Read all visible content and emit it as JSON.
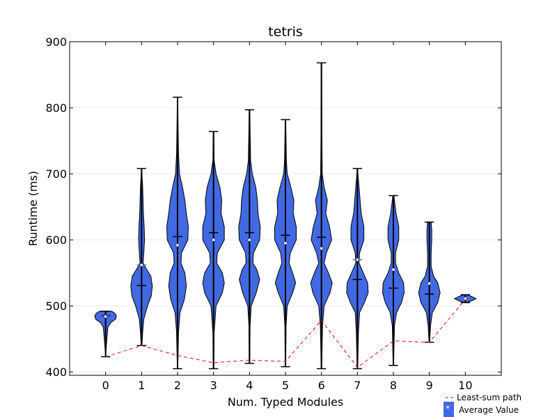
{
  "chart_data": {
    "type": "violin",
    "title": "tetris",
    "xlabel": "Num. Typed Modules",
    "ylabel": "Runtime (ms)",
    "xlim": [
      -1,
      11
    ],
    "ylim": [
      395,
      900
    ],
    "x_ticks": [
      0,
      1,
      2,
      3,
      4,
      5,
      6,
      7,
      8,
      9,
      10
    ],
    "y_ticks": [
      400,
      500,
      600,
      700,
      800,
      900
    ],
    "grid": "horizontal",
    "legend_position": "bottom-right",
    "colors": {
      "violin_fill": "#4169e1",
      "least_sum_path": "#ff0000",
      "grid": "#e8e8e8"
    },
    "legend": [
      {
        "label": "Least-sum path",
        "style": "red-dashed-line"
      },
      {
        "label": "Average Value",
        "style": "blue-box-with-star",
        "marker_text": "*"
      }
    ],
    "violins": [
      {
        "x": 0,
        "min": 423,
        "max": 492,
        "median": 485,
        "mean": 484,
        "shape": [
          [
            423,
            0
          ],
          [
            440,
            0.02
          ],
          [
            455,
            0.04
          ],
          [
            468,
            0.06
          ],
          [
            475,
            0.14
          ],
          [
            480,
            0.26
          ],
          [
            485,
            0.28
          ],
          [
            489,
            0.24
          ],
          [
            492,
            0.16
          ]
        ]
      },
      {
        "x": 1,
        "min": 440,
        "max": 708,
        "median": 531,
        "mean": 562,
        "shape": [
          [
            440,
            0.01
          ],
          [
            460,
            0.03
          ],
          [
            480,
            0.06
          ],
          [
            500,
            0.16
          ],
          [
            515,
            0.26
          ],
          [
            530,
            0.29
          ],
          [
            545,
            0.25
          ],
          [
            555,
            0.14
          ],
          [
            565,
            0.04
          ],
          [
            580,
            0.06
          ],
          [
            600,
            0.08
          ],
          [
            620,
            0.07
          ],
          [
            640,
            0.05
          ],
          [
            660,
            0.04
          ],
          [
            680,
            0.03
          ],
          [
            700,
            0.01
          ],
          [
            708,
            0.005
          ]
        ]
      },
      {
        "x": 2,
        "min": 405,
        "max": 816,
        "median": 605,
        "mean": 592,
        "shape": [
          [
            405,
            0.005
          ],
          [
            460,
            0.02
          ],
          [
            490,
            0.05
          ],
          [
            510,
            0.14
          ],
          [
            530,
            0.18
          ],
          [
            550,
            0.15
          ],
          [
            565,
            0.07
          ],
          [
            580,
            0.08
          ],
          [
            600,
            0.21
          ],
          [
            620,
            0.22
          ],
          [
            640,
            0.18
          ],
          [
            660,
            0.15
          ],
          [
            680,
            0.1
          ],
          [
            700,
            0.04
          ],
          [
            730,
            0.02
          ],
          [
            780,
            0.01
          ],
          [
            816,
            0.005
          ]
        ]
      },
      {
        "x": 3,
        "min": 405,
        "max": 764,
        "median": 611,
        "mean": 600,
        "shape": [
          [
            405,
            0.005
          ],
          [
            460,
            0.01
          ],
          [
            500,
            0.04
          ],
          [
            520,
            0.14
          ],
          [
            535,
            0.17
          ],
          [
            550,
            0.14
          ],
          [
            565,
            0.05
          ],
          [
            580,
            0.06
          ],
          [
            600,
            0.17
          ],
          [
            620,
            0.17
          ],
          [
            640,
            0.12
          ],
          [
            660,
            0.13
          ],
          [
            680,
            0.1
          ],
          [
            700,
            0.04
          ],
          [
            720,
            0.01
          ],
          [
            764,
            0.005
          ]
        ]
      },
      {
        "x": 4,
        "min": 413,
        "max": 797,
        "median": 611,
        "mean": 600,
        "shape": [
          [
            413,
            0.005
          ],
          [
            470,
            0.01
          ],
          [
            500,
            0.03
          ],
          [
            520,
            0.12
          ],
          [
            540,
            0.18
          ],
          [
            555,
            0.13
          ],
          [
            565,
            0.06
          ],
          [
            580,
            0.07
          ],
          [
            600,
            0.18
          ],
          [
            620,
            0.19
          ],
          [
            640,
            0.15
          ],
          [
            660,
            0.14
          ],
          [
            680,
            0.11
          ],
          [
            700,
            0.05
          ],
          [
            720,
            0.02
          ],
          [
            797,
            0.005
          ]
        ]
      },
      {
        "x": 5,
        "min": 408,
        "max": 782,
        "median": 607,
        "mean": 595,
        "shape": [
          [
            408,
            0.005
          ],
          [
            470,
            0.01
          ],
          [
            500,
            0.03
          ],
          [
            520,
            0.12
          ],
          [
            535,
            0.17
          ],
          [
            550,
            0.12
          ],
          [
            565,
            0.06
          ],
          [
            580,
            0.08
          ],
          [
            600,
            0.18
          ],
          [
            620,
            0.18
          ],
          [
            640,
            0.13
          ],
          [
            660,
            0.14
          ],
          [
            680,
            0.09
          ],
          [
            700,
            0.03
          ],
          [
            720,
            0.015
          ],
          [
            782,
            0.005
          ]
        ]
      },
      {
        "x": 6,
        "min": 405,
        "max": 868,
        "median": 604,
        "mean": 587,
        "shape": [
          [
            405,
            0.005
          ],
          [
            470,
            0.02
          ],
          [
            500,
            0.05
          ],
          [
            520,
            0.16
          ],
          [
            535,
            0.2
          ],
          [
            550,
            0.13
          ],
          [
            565,
            0.05
          ],
          [
            580,
            0.09
          ],
          [
            600,
            0.19
          ],
          [
            620,
            0.15
          ],
          [
            640,
            0.08
          ],
          [
            660,
            0.11
          ],
          [
            680,
            0.05
          ],
          [
            700,
            0.015
          ],
          [
            760,
            0.008
          ],
          [
            868,
            0.005
          ]
        ]
      },
      {
        "x": 7,
        "min": 405,
        "max": 708,
        "median": 540,
        "mean": 570,
        "shape": [
          [
            405,
            0.005
          ],
          [
            460,
            0.02
          ],
          [
            490,
            0.04
          ],
          [
            505,
            0.13
          ],
          [
            520,
            0.2
          ],
          [
            535,
            0.19
          ],
          [
            550,
            0.11
          ],
          [
            565,
            0.03
          ],
          [
            580,
            0.04
          ],
          [
            600,
            0.12
          ],
          [
            620,
            0.12
          ],
          [
            640,
            0.07
          ],
          [
            660,
            0.05
          ],
          [
            680,
            0.03
          ],
          [
            700,
            0.01
          ],
          [
            708,
            0.005
          ]
        ]
      },
      {
        "x": 8,
        "min": 410,
        "max": 667,
        "median": 527,
        "mean": 555,
        "shape": [
          [
            410,
            0.005
          ],
          [
            470,
            0.02
          ],
          [
            490,
            0.06
          ],
          [
            505,
            0.15
          ],
          [
            520,
            0.2
          ],
          [
            535,
            0.19
          ],
          [
            550,
            0.1
          ],
          [
            565,
            0.04
          ],
          [
            580,
            0.04
          ],
          [
            600,
            0.1
          ],
          [
            620,
            0.1
          ],
          [
            640,
            0.05
          ],
          [
            660,
            0.02
          ],
          [
            667,
            0.01
          ]
        ]
      },
      {
        "x": 9,
        "min": 445,
        "max": 627,
        "median": 518,
        "mean": 534,
        "shape": [
          [
            445,
            0.005
          ],
          [
            470,
            0.02
          ],
          [
            490,
            0.05
          ],
          [
            505,
            0.14
          ],
          [
            520,
            0.18
          ],
          [
            535,
            0.14
          ],
          [
            545,
            0.07
          ],
          [
            560,
            0.03
          ],
          [
            580,
            0.03
          ],
          [
            600,
            0.04
          ],
          [
            615,
            0.04
          ],
          [
            627,
            0.03
          ]
        ]
      },
      {
        "x": 10,
        "min": 505,
        "max": 517,
        "median": 511,
        "mean": 511,
        "shape": [
          [
            505,
            0.02
          ],
          [
            508,
            0.16
          ],
          [
            511,
            0.25
          ],
          [
            514,
            0.16
          ],
          [
            517,
            0.04
          ]
        ]
      }
    ],
    "least_sum_path": {
      "x": [
        0,
        1,
        2,
        3,
        4,
        5,
        6,
        7,
        8,
        9,
        10
      ],
      "y": [
        423,
        440,
        425,
        414,
        418,
        416,
        478,
        407,
        447,
        445,
        510
      ]
    }
  }
}
